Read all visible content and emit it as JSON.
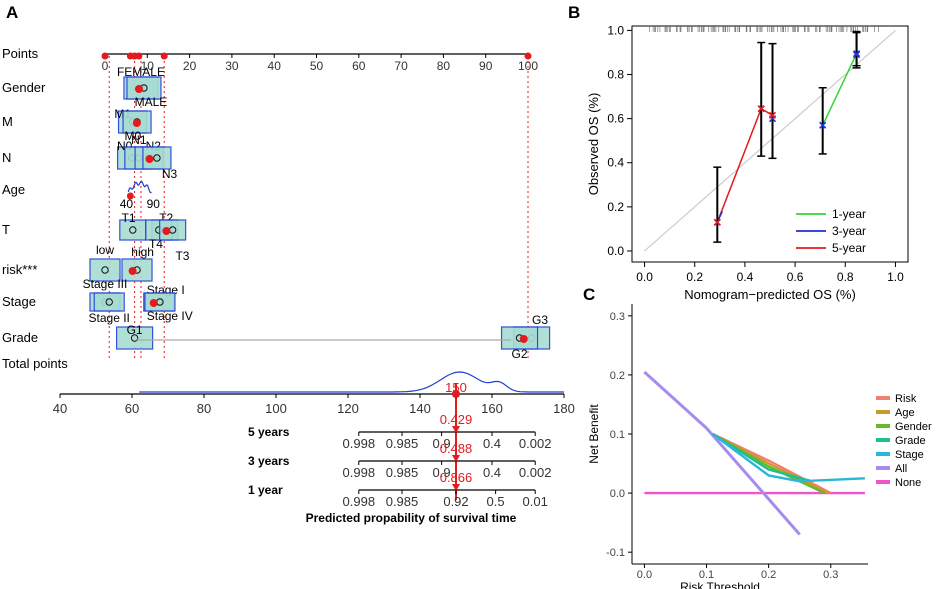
{
  "colors": {
    "red": "#e41a1c",
    "box_stroke": "#1f3fd8",
    "box_fill": "#a8dcd2",
    "y1": "#33d633",
    "y3": "#1f2fd6",
    "y5": "#e01b1b",
    "risk": "#f08070",
    "age": "#c89a2a",
    "gender": "#66b82e",
    "grade": "#1fbf8f",
    "stage": "#29b7d9",
    "all": "#a78bee",
    "none": "#ee55cc"
  },
  "chart_data": [
    {
      "panel": "A",
      "type": "nomogram",
      "title": "",
      "points_label": "Points",
      "points_ticks": [
        "0",
        "10",
        "20",
        "30",
        "40",
        "50",
        "60",
        "70",
        "80",
        "90",
        "100"
      ],
      "points_range": [
        0,
        100
      ],
      "variables": [
        {
          "name": "Gender",
          "levels": [
            {
              "label": "FEMALE",
              "points": 8.5
            },
            {
              "label": "MALE",
              "points": 8.5
            }
          ]
        },
        {
          "name": "M",
          "levels": [
            {
              "label": "M1",
              "points": 7.5
            },
            {
              "label": "M0",
              "points": 8
            }
          ]
        },
        {
          "name": "N",
          "levels": [
            {
              "label": "N0",
              "points": 7
            },
            {
              "label": "N1",
              "points": 8
            },
            {
              "label": "N2",
              "points": 10
            },
            {
              "label": "N3",
              "points": 11
            }
          ]
        },
        {
          "name": "Age",
          "levels": [
            {
              "label": "40",
              "points": 6
            },
            {
              "label": "90",
              "points": 10
            }
          ]
        },
        {
          "name": "T",
          "levels": [
            {
              "label": "T1",
              "points": 7
            },
            {
              "label": "T2",
              "points": 14
            },
            {
              "label": "T4",
              "points": 13
            },
            {
              "label": "T3",
              "points": 15
            }
          ]
        },
        {
          "name": "risk***",
          "levels": [
            {
              "label": "low",
              "points": 0
            },
            {
              "label": "high",
              "points": 7
            }
          ]
        },
        {
          "name": "Stage",
          "levels": [
            {
              "label": "Stage III",
              "points": 0
            },
            {
              "label": "Stage I",
              "points": 12
            },
            {
              "label": "Stage II",
              "points": 1
            },
            {
              "label": "Stage IV",
              "points": 12
            }
          ]
        },
        {
          "name": "Grade",
          "levels": [
            {
              "label": "G1",
              "points": 7
            },
            {
              "label": "G3",
              "points": 100
            },
            {
              "label": "G2",
              "points": 98
            }
          ]
        }
      ],
      "total_points_label": "Total points",
      "total_ticks": [
        "40",
        "60",
        "80",
        "100",
        "120",
        "140",
        "160",
        "180"
      ],
      "total_range": [
        40,
        180
      ],
      "total_value": 150,
      "total_value_label": "150",
      "survival_axes": [
        {
          "label": "5 years",
          "ticks": [
            "0.998",
            "0.985",
            "0.9",
            "0.4",
            "0.002"
          ],
          "tick_totals": [
            123,
            135,
            146,
            160,
            172
          ],
          "predicted": 0.429,
          "predicted_label": "0.429"
        },
        {
          "label": "3 years",
          "ticks": [
            "0.998",
            "0.985",
            "0.9",
            "0.4",
            "0.002"
          ],
          "tick_totals": [
            123,
            135,
            146,
            160,
            172
          ],
          "predicted": 0.488,
          "predicted_label": "0.488"
        },
        {
          "label": "1 year",
          "ticks": [
            "0.998",
            "0.985",
            "0.92",
            "0.5",
            "0.01"
          ],
          "tick_totals": [
            123,
            135,
            150,
            161,
            172
          ],
          "predicted": 0.866,
          "predicted_label": "0.866"
        }
      ],
      "xlabel": "Predicted propability of survival time"
    },
    {
      "panel": "B",
      "type": "line",
      "title": "",
      "xlabel": "Nomogram−predicted OS (%)",
      "ylabel": "Observed OS (%)",
      "xlim": [
        -0.05,
        1.05
      ],
      "ylim": [
        -0.05,
        1.02
      ],
      "x_ticks": [
        "0.0",
        "0.2",
        "0.4",
        "0.6",
        "0.8",
        "1.0"
      ],
      "y_ticks": [
        "0.0",
        "0.2",
        "0.4",
        "0.6",
        "0.8",
        "1.0"
      ],
      "series": [
        {
          "name": "1-year",
          "x": [
            0.71,
            0.845
          ],
          "y": [
            0.57,
            0.895
          ],
          "lo": [
            0.44,
            0.83
          ],
          "hi": [
            0.74,
            0.99
          ]
        },
        {
          "name": "3-year",
          "x": [
            0.29,
            0.465,
            0.51,
            0.845
          ],
          "y": [
            0.13,
            0.645,
            0.6,
            0.89
          ],
          "lo": [
            0.04,
            0.43,
            0.42,
            0.84
          ],
          "hi": [
            0.38,
            0.945,
            0.94,
            0.995
          ]
        },
        {
          "name": "5-year",
          "x": [
            0.29,
            0.465,
            0.51
          ],
          "y": [
            0.13,
            0.645,
            0.615
          ]
        }
      ],
      "legend": [
        "1-year",
        "3-year",
        "5-year"
      ],
      "legend_position": "bottom-right"
    },
    {
      "panel": "C",
      "type": "line",
      "title": "",
      "xlabel": "Risk Threshold",
      "ylabel": "Net Benefit",
      "xlim": [
        -0.02,
        0.36
      ],
      "ylim": [
        -0.12,
        0.32
      ],
      "x_ticks": [
        "0.0",
        "0.1",
        "0.2",
        "0.3"
      ],
      "y_ticks": [
        "0.3",
        "0.2",
        "0.1",
        "0.0",
        "-0.1"
      ],
      "series": [
        {
          "name": "Risk",
          "x": [
            0.11,
            0.2,
            0.3
          ],
          "y": [
            0.1,
            0.055,
            0.0
          ]
        },
        {
          "name": "Age",
          "x": [
            0.11,
            0.2,
            0.295
          ],
          "y": [
            0.1,
            0.05,
            0.0
          ]
        },
        {
          "name": "Gender",
          "x": [
            0.11,
            0.2,
            0.29
          ],
          "y": [
            0.1,
            0.045,
            0.0
          ]
        },
        {
          "name": "Grade",
          "x": [
            0.11,
            0.2,
            0.27
          ],
          "y": [
            0.1,
            0.04,
            0.02
          ]
        },
        {
          "name": "Stage",
          "x": [
            0.11,
            0.2,
            0.25,
            0.355
          ],
          "y": [
            0.1,
            0.03,
            0.02,
            0.025
          ]
        },
        {
          "name": "All",
          "x": [
            0.0,
            0.1,
            0.2,
            0.25
          ],
          "y": [
            0.205,
            0.11,
            -0.01,
            -0.07
          ]
        },
        {
          "name": "None",
          "x": [
            0.0,
            0.355
          ],
          "y": [
            0.0,
            0.0
          ]
        }
      ],
      "legend": [
        "Risk",
        "Age",
        "Gender",
        "Grade",
        "Stage",
        "All",
        "None"
      ],
      "legend_position": "right"
    }
  ],
  "panel_labels": [
    "A",
    "B",
    "C"
  ]
}
